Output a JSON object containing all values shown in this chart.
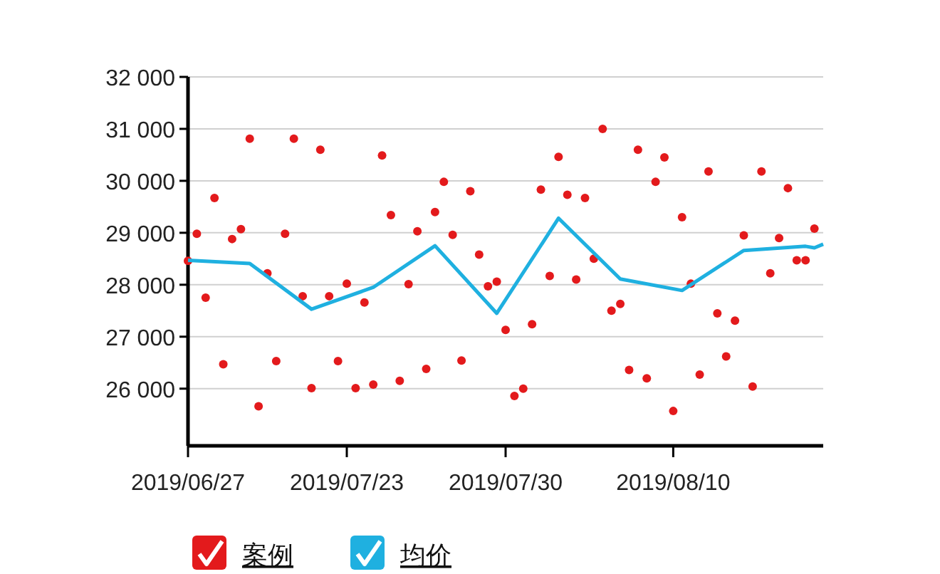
{
  "chart_data": {
    "type": "scatter",
    "legend": "bottom",
    "grid": "y",
    "ylim": [
      24900,
      32000
    ],
    "categories": [
      "2019/06/27",
      null,
      null,
      null,
      null,
      null,
      null,
      null,
      null,
      null,
      null,
      null,
      null,
      null,
      null,
      null,
      null,
      null,
      "2019/07/23",
      null,
      null,
      null,
      null,
      null,
      null,
      null,
      null,
      null,
      null,
      null,
      null,
      null,
      null,
      null,
      null,
      null,
      "2019/07/30",
      null,
      null,
      null,
      null,
      null,
      null,
      null,
      null,
      null,
      null,
      null,
      null,
      null,
      null,
      null,
      null,
      null,
      null,
      "2019/08/10",
      null,
      null,
      null,
      null,
      null,
      null,
      null,
      null,
      null,
      null,
      null,
      null,
      null,
      null,
      null,
      null,
      null
    ],
    "yticks": [
      {
        "value": 26000,
        "label": "26 000"
      },
      {
        "value": 27000,
        "label": "27 000"
      },
      {
        "value": 28000,
        "label": "28 000"
      },
      {
        "value": 29000,
        "label": "29 000"
      },
      {
        "value": 30000,
        "label": "30 000"
      },
      {
        "value": 31000,
        "label": "31 000"
      },
      {
        "value": 32000,
        "label": "32 000"
      }
    ],
    "series": [
      {
        "name": "案例",
        "color": "#e31a1c",
        "marker": "circle",
        "values": [
          28460,
          28980,
          27750,
          29670,
          26470,
          28880,
          29070,
          30810,
          25660,
          28220,
          26530,
          28980,
          30810,
          27780,
          26010,
          30600,
          27780,
          26530,
          28020,
          26010,
          27660,
          26080,
          30490,
          29340,
          26150,
          28010,
          29030,
          26380,
          29400,
          29980,
          28960,
          26540,
          29800,
          28580,
          27970,
          28060,
          27130,
          25860,
          26000,
          27240,
          29830,
          28170,
          30460,
          29730,
          28100,
          29670,
          28500,
          31000,
          27500,
          27630,
          26360,
          30600,
          26200,
          29980,
          30450,
          25570,
          29300,
          28020,
          26270,
          30180,
          27450,
          26620,
          27310,
          28950,
          26040,
          30180,
          28220,
          28900,
          29860,
          28470,
          28470,
          29080,
          null
        ]
      },
      {
        "name": "均价",
        "type": "line",
        "color": "#1fb0e0",
        "marker": "none",
        "values": [
          28470,
          null,
          null,
          null,
          null,
          null,
          null,
          28410,
          null,
          null,
          null,
          null,
          null,
          null,
          27530,
          null,
          null,
          null,
          null,
          null,
          null,
          27950,
          null,
          null,
          null,
          null,
          null,
          null,
          28750,
          null,
          null,
          null,
          null,
          null,
          null,
          27450,
          null,
          null,
          null,
          null,
          null,
          null,
          29280,
          null,
          null,
          null,
          null,
          null,
          null,
          28110,
          null,
          null,
          null,
          null,
          null,
          null,
          27890,
          null,
          null,
          null,
          null,
          null,
          null,
          28660,
          null,
          null,
          null,
          null,
          null,
          null,
          28740,
          28710,
          28780
        ]
      }
    ]
  }
}
